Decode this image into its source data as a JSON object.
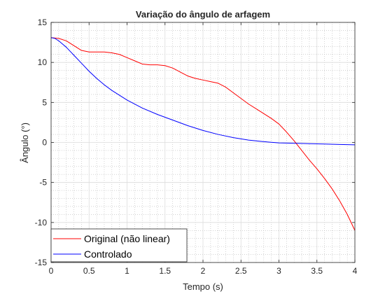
{
  "chart_data": {
    "type": "line",
    "title": "Variação do ângulo de arfagem",
    "xlabel": "Tempo (s)",
    "ylabel": "Ângulo (°)",
    "xlim": [
      0,
      4
    ],
    "ylim": [
      -15,
      15
    ],
    "x_ticks": [
      0,
      0.5,
      1,
      1.5,
      2,
      2.5,
      3,
      3.5,
      4
    ],
    "x_tick_labels": [
      "0",
      "0.5",
      "1",
      "1.5",
      "2",
      "2.5",
      "3",
      "3.5",
      "4"
    ],
    "y_ticks": [
      -15,
      -10,
      -5,
      0,
      5,
      10,
      15
    ],
    "y_tick_labels": [
      "-15",
      "-10",
      "-5",
      "0",
      "5",
      "10",
      "15"
    ],
    "grid": "major and minor (dotted)",
    "legend_position": "bottom-left",
    "series": [
      {
        "name": "Original (não linear)",
        "color": "#ff0000",
        "x": [
          0,
          0.1,
          0.2,
          0.3,
          0.4,
          0.5,
          0.6,
          0.7,
          0.8,
          0.9,
          1.0,
          1.1,
          1.2,
          1.3,
          1.4,
          1.5,
          1.6,
          1.7,
          1.8,
          1.9,
          2.0,
          2.1,
          2.2,
          2.3,
          2.4,
          2.5,
          2.6,
          2.7,
          2.8,
          2.9,
          3.0,
          3.1,
          3.2,
          3.3,
          3.4,
          3.5,
          3.6,
          3.7,
          3.8,
          3.9,
          4.0
        ],
        "y": [
          13.1,
          13.0,
          12.7,
          12.1,
          11.5,
          11.3,
          11.3,
          11.3,
          11.2,
          11.0,
          10.6,
          10.2,
          9.8,
          9.7,
          9.7,
          9.6,
          9.3,
          8.8,
          8.3,
          8.0,
          7.8,
          7.6,
          7.4,
          6.9,
          6.2,
          5.5,
          4.8,
          4.2,
          3.6,
          3.0,
          2.3,
          1.3,
          0.2,
          -1.0,
          -2.2,
          -3.3,
          -4.5,
          -5.8,
          -7.3,
          -9.0,
          -11.0
        ]
      },
      {
        "name": "Controlado",
        "color": "#0000ff",
        "x": [
          0,
          0.05,
          0.1,
          0.15,
          0.2,
          0.25,
          0.3,
          0.4,
          0.5,
          0.6,
          0.7,
          0.8,
          0.9,
          1.0,
          1.2,
          1.4,
          1.6,
          1.8,
          2.0,
          2.2,
          2.4,
          2.6,
          2.8,
          3.0,
          3.2,
          3.4,
          3.6,
          3.8,
          4.0
        ],
        "y": [
          13.1,
          13.0,
          12.7,
          12.3,
          11.9,
          11.4,
          10.9,
          9.9,
          8.9,
          8.0,
          7.2,
          6.5,
          5.9,
          5.3,
          4.3,
          3.5,
          2.8,
          2.1,
          1.5,
          1.0,
          0.6,
          0.3,
          0.1,
          -0.05,
          -0.1,
          -0.15,
          -0.2,
          -0.25,
          -0.3
        ]
      }
    ]
  }
}
